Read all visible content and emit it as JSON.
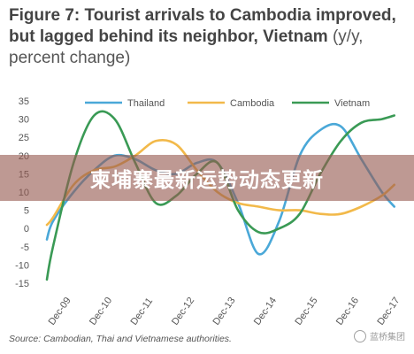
{
  "title": {
    "main": "Figure 7: Tourist arrivals to Cambodia improved, but lagged behind its neighbor, Vietnam",
    "unit": "(y/y, percent change)"
  },
  "banner_text": "柬埔寨最新运势动态更新",
  "source": "Source: Cambodian, Thai and Vietnamese authorities.",
  "watermark": "蓝桥集团",
  "colors": {
    "thailand": "#4aa8d8",
    "cambodia": "#f2b94a",
    "vietnam": "#3a9a55",
    "axis_text": "#555555",
    "banner": "#9a5a50"
  },
  "chart_data": {
    "type": "line",
    "x_tick_labels": [
      "Dec-09",
      "Dec-10",
      "Dec-11",
      "Dec-12",
      "Dec-13",
      "Dec-14",
      "Dec-15",
      "Dec-16",
      "Dec-17"
    ],
    "ylim": [
      -15,
      35
    ],
    "yticks": [
      -15,
      -10,
      -5,
      0,
      5,
      10,
      15,
      20,
      25,
      30,
      35
    ],
    "legend_position": "top",
    "grid": false,
    "series": [
      {
        "name": "Thailand",
        "color": "#4aa8d8",
        "x": [
          -0.15,
          0,
          0.5,
          1,
          1.5,
          2,
          2.5,
          3,
          3.5,
          4,
          4.5,
          5,
          5.5,
          6,
          6.5,
          7,
          7.5,
          8,
          8.3
        ],
        "y": [
          -3,
          2,
          10,
          16,
          20,
          19,
          16,
          15,
          18,
          18,
          7,
          -7,
          2,
          20,
          27,
          28,
          19,
          10,
          6
        ]
      },
      {
        "name": "Cambodia",
        "color": "#f2b94a",
        "x": [
          -0.15,
          0,
          0.5,
          1,
          1.5,
          2,
          2.5,
          3,
          3.5,
          4,
          4.5,
          5,
          5.5,
          6,
          6.5,
          7,
          7.5,
          8,
          8.3
        ],
        "y": [
          1,
          3,
          12,
          16,
          17,
          20,
          24,
          23,
          16,
          10,
          7,
          6,
          5,
          5,
          4,
          4,
          6,
          9,
          12
        ]
      },
      {
        "name": "Vietnam",
        "color": "#3a9a55",
        "x": [
          -0.15,
          0,
          0.5,
          1,
          1.5,
          2,
          2.5,
          3,
          3.5,
          4,
          4.5,
          5,
          5.5,
          6,
          6.5,
          7,
          7.5,
          8,
          8.3
        ],
        "y": [
          -14,
          -5,
          18,
          31,
          30,
          18,
          7,
          9,
          15,
          18,
          5,
          -1,
          0,
          4,
          15,
          24,
          29,
          30,
          31
        ]
      }
    ]
  }
}
